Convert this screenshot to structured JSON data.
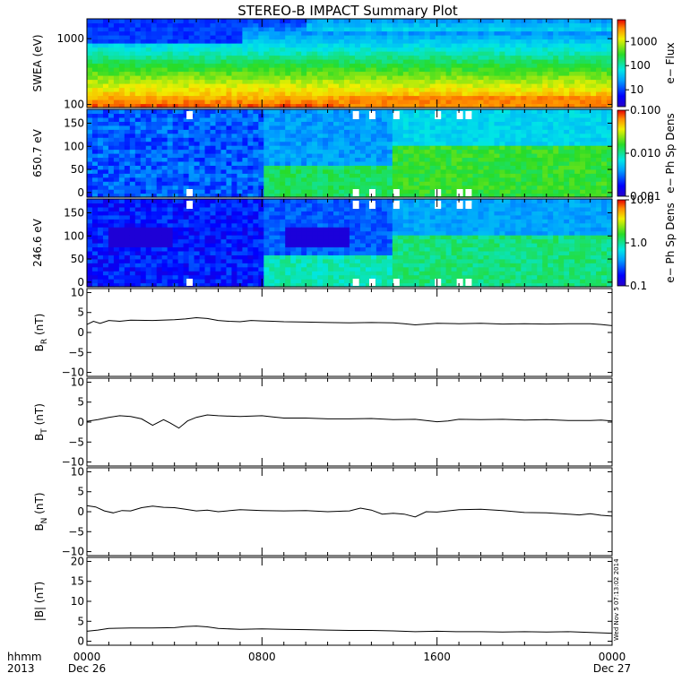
{
  "title": "STEREO-B IMPACT Summary Plot",
  "stamp": "Wed Nov 5 07:13:02 2014",
  "footer": {
    "row1": "hhmm",
    "row2": "2013"
  },
  "x_axis": {
    "ticks": [
      {
        "t": 0,
        "label": "0000",
        "sublabel": "Dec 26"
      },
      {
        "t": 8,
        "label": "0800",
        "sublabel": ""
      },
      {
        "t": 16,
        "label": "1600",
        "sublabel": ""
      },
      {
        "t": 24,
        "label": "0000",
        "sublabel": "Dec 27"
      }
    ],
    "range": [
      0,
      24
    ]
  },
  "chart_data": [
    {
      "type": "heatmap",
      "ylabel": "SWEA (eV)",
      "yscale": "log",
      "ylim": [
        90,
        2000
      ],
      "yticks": [
        {
          "v": 100,
          "label": "100"
        },
        {
          "v": 1000,
          "label": "1000"
        }
      ],
      "colorbar": {
        "label": "e− Flux",
        "scale": "log",
        "range": [
          2,
          8000
        ],
        "ticks": [
          {
            "v": 10,
            "label": "10"
          },
          {
            "v": 100,
            "label": "100"
          },
          {
            "v": 1000,
            "label": "1000"
          }
        ]
      },
      "description_values": {
        "low_energy_level": "high flux (yellow-red)",
        "high_energy_level": "low flux (blue)"
      }
    },
    {
      "type": "heatmap",
      "ylabel": "650.7 eV",
      "ylim": [
        -10,
        180
      ],
      "yticks": [
        {
          "v": 0,
          "label": "0"
        },
        {
          "v": 50,
          "label": "50"
        },
        {
          "v": 100,
          "label": "100"
        },
        {
          "v": 150,
          "label": "150"
        }
      ],
      "colorbar": {
        "label": "e− Ph Sp Dens",
        "scale": "log",
        "range": [
          0.001,
          0.1
        ],
        "ticks": [
          {
            "v": 0.001,
            "label": "0.001"
          },
          {
            "v": 0.01,
            "label": "0.010"
          },
          {
            "v": 0.1,
            "label": "0.100"
          }
        ]
      },
      "gaps_hours": [
        4.55,
        12.15,
        12.9,
        14.0,
        15.9,
        16.9,
        17.3
      ]
    },
    {
      "type": "heatmap",
      "ylabel": "246.6 eV",
      "ylim": [
        -10,
        180
      ],
      "yticks": [
        {
          "v": 0,
          "label": "0"
        },
        {
          "v": 50,
          "label": "50"
        },
        {
          "v": 100,
          "label": "100"
        },
        {
          "v": 150,
          "label": "150"
        }
      ],
      "colorbar": {
        "label": "e− Ph Sp Dens",
        "scale": "log",
        "range": [
          0.1,
          10
        ],
        "ticks": [
          {
            "v": 0.1,
            "label": "0.1"
          },
          {
            "v": 1,
            "label": "1.0"
          },
          {
            "v": 10,
            "label": "10.0"
          }
        ]
      },
      "gaps_hours": [
        4.55,
        12.15,
        12.9,
        14.0,
        15.9,
        16.9,
        17.3
      ]
    },
    {
      "type": "line",
      "ylabel_main": "B",
      "ylabel_sub": "R",
      "ylabel_unit": "(nT)",
      "ylim": [
        -11,
        11
      ],
      "yticks": [
        {
          "v": -10,
          "label": "−10"
        },
        {
          "v": -5,
          "label": "−5"
        },
        {
          "v": 0,
          "label": "0"
        },
        {
          "v": 5,
          "label": "5"
        },
        {
          "v": 10,
          "label": "10"
        }
      ],
      "x": [
        0,
        0.3,
        0.6,
        1,
        1.5,
        2,
        3,
        4,
        4.5,
        5,
        5.5,
        6,
        6.5,
        7,
        7.5,
        8,
        8.5,
        9,
        10,
        11,
        12,
        13,
        14,
        14.5,
        15,
        16,
        17,
        18,
        19,
        20,
        21,
        22,
        23,
        23.5,
        24
      ],
      "y": [
        2.0,
        2.8,
        2.3,
        3.0,
        2.8,
        3.1,
        3.0,
        3.2,
        3.4,
        3.7,
        3.5,
        3.0,
        2.8,
        2.7,
        3.0,
        2.9,
        2.8,
        2.7,
        2.6,
        2.5,
        2.4,
        2.5,
        2.4,
        2.2,
        1.9,
        2.3,
        2.2,
        2.3,
        2.1,
        2.2,
        2.1,
        2.2,
        2.2,
        2.0,
        1.7
      ]
    },
    {
      "type": "line",
      "ylabel_main": "B",
      "ylabel_sub": "T",
      "ylabel_unit": "(nT)",
      "ylim": [
        -11,
        11
      ],
      "yticks": [
        {
          "v": -10,
          "label": "−10"
        },
        {
          "v": -5,
          "label": "−5"
        },
        {
          "v": 0,
          "label": "0"
        },
        {
          "v": 5,
          "label": "5"
        },
        {
          "v": 10,
          "label": "10"
        }
      ],
      "x": [
        0,
        0.5,
        1,
        1.5,
        2,
        2.5,
        3,
        3.5,
        3.8,
        4.2,
        4.6,
        5,
        5.5,
        6,
        7,
        8,
        8.5,
        9,
        10,
        11,
        12,
        13,
        14,
        15,
        16,
        16.5,
        17,
        18,
        19,
        20,
        21,
        22,
        23,
        23.5,
        24
      ],
      "y": [
        0.2,
        0.6,
        1.2,
        1.6,
        1.4,
        0.8,
        -0.8,
        0.6,
        -0.2,
        -1.5,
        0.3,
        1.2,
        1.8,
        1.6,
        1.4,
        1.6,
        1.3,
        1.0,
        1.0,
        0.8,
        0.8,
        0.9,
        0.6,
        0.7,
        0.1,
        0.3,
        0.7,
        0.6,
        0.7,
        0.5,
        0.6,
        0.4,
        0.4,
        0.5,
        0.3
      ]
    },
    {
      "type": "line",
      "ylabel_main": "B",
      "ylabel_sub": "N",
      "ylabel_unit": "(nT)",
      "ylim": [
        -11,
        11
      ],
      "yticks": [
        {
          "v": -10,
          "label": "−10"
        },
        {
          "v": -5,
          "label": "−5"
        },
        {
          "v": 0,
          "label": "0"
        },
        {
          "v": 5,
          "label": "5"
        },
        {
          "v": 10,
          "label": "10"
        }
      ],
      "x": [
        0,
        0.4,
        0.8,
        1.2,
        1.6,
        2,
        2.5,
        3,
        3.5,
        4,
        4.5,
        5,
        5.5,
        6,
        7,
        8,
        9,
        10,
        11,
        12,
        12.5,
        13,
        13.5,
        14,
        14.5,
        15,
        15.5,
        16,
        17,
        18,
        19,
        20,
        21,
        22,
        22.5,
        23,
        23.5,
        24
      ],
      "y": [
        1.5,
        1.2,
        0.2,
        -0.3,
        0.3,
        0.2,
        1.0,
        1.4,
        1.1,
        1.0,
        0.6,
        0.2,
        0.4,
        0.0,
        0.5,
        0.3,
        0.2,
        0.3,
        0.0,
        0.2,
        0.9,
        0.4,
        -0.6,
        -0.4,
        -0.6,
        -1.3,
        0.0,
        -0.1,
        0.5,
        0.6,
        0.3,
        -0.2,
        -0.3,
        -0.6,
        -0.8,
        -0.5,
        -0.9,
        -1.1
      ]
    },
    {
      "type": "line",
      "ylabel_main": "|B|",
      "ylabel_sub": "",
      "ylabel_unit": "(nT)",
      "ylim": [
        -1,
        21
      ],
      "yticks": [
        {
          "v": 0,
          "label": "0"
        },
        {
          "v": 5,
          "label": "5"
        },
        {
          "v": 10,
          "label": "10"
        },
        {
          "v": 15,
          "label": "15"
        },
        {
          "v": 20,
          "label": "20"
        }
      ],
      "x": [
        0,
        0.5,
        1,
        2,
        3,
        4,
        4.5,
        5,
        5.5,
        6,
        7,
        8,
        9,
        10,
        11,
        12,
        13,
        14,
        15,
        16,
        17,
        18,
        19,
        20,
        21,
        22,
        23,
        24
      ],
      "y": [
        2.5,
        2.8,
        3.2,
        3.3,
        3.3,
        3.4,
        3.7,
        3.8,
        3.6,
        3.2,
        3.0,
        3.1,
        3.0,
        2.9,
        2.8,
        2.7,
        2.7,
        2.6,
        2.4,
        2.5,
        2.4,
        2.4,
        2.3,
        2.4,
        2.3,
        2.4,
        2.2,
        2.0
      ]
    }
  ]
}
